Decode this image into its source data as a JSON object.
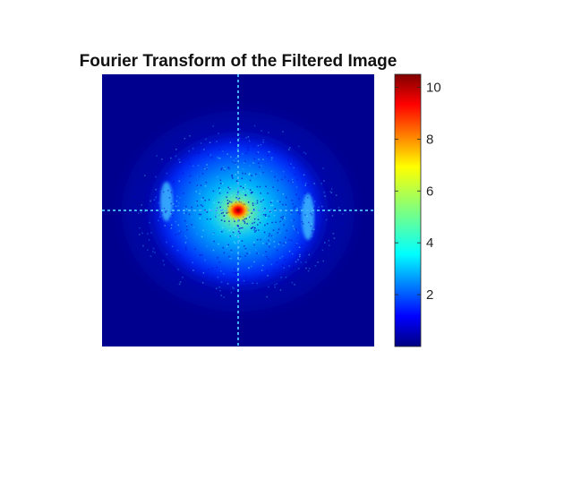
{
  "chart_data": {
    "type": "heatmap",
    "title": "Fourier Transform of the Filtered Image",
    "xlabel": "",
    "ylabel": "",
    "colormap": "jet",
    "colorbar": {
      "min": 0,
      "max": 10.5,
      "ticks": [
        2,
        4,
        6,
        8,
        10
      ],
      "tick_labels": [
        "2",
        "4",
        "6",
        "8",
        "10"
      ]
    },
    "description_values": {
      "peak_value": 10.5,
      "background_value": 0.1
    }
  },
  "colors": {
    "axis": "#262626",
    "jet_stops": [
      "#00007f",
      "#0000ff",
      "#007fff",
      "#00ffff",
      "#7fff7f",
      "#ffff00",
      "#ff7f00",
      "#ff0000",
      "#7f0000"
    ]
  }
}
